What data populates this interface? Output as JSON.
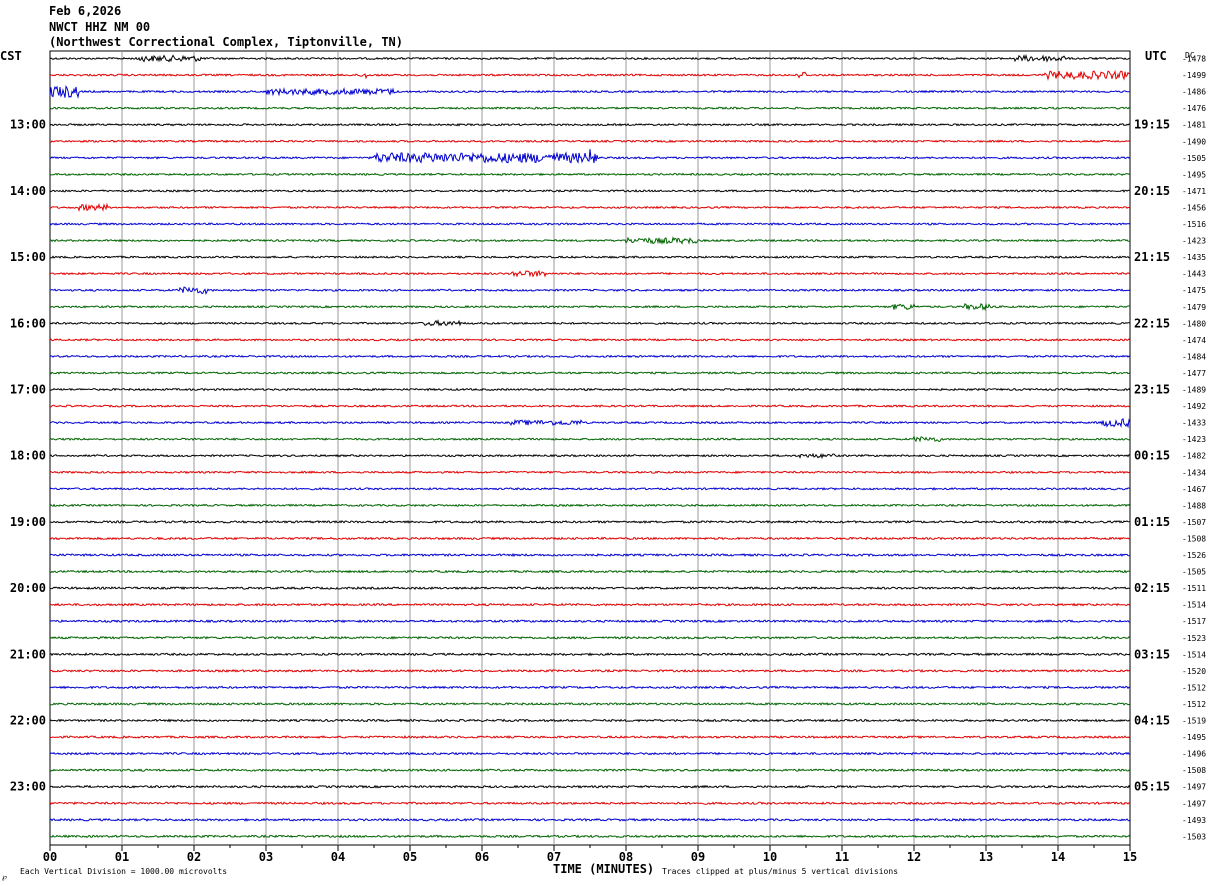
{
  "header": {
    "date": "Feb 6,2026",
    "station": "NWCT HHZ NM 00",
    "location": "(Northwest Correctional Complex, Tiptonville, TN)"
  },
  "labels": {
    "left_tz": "CST",
    "right_tz": "UTC",
    "dc_header": "DC",
    "xlabel": "TIME (MINUTES)",
    "scale_note": "Each Vertical Division = 1000.00 microvolts",
    "clip_note": "Traces clipped at plus/minus 5 vertical divisions",
    "corner_mark": "℘"
  },
  "colors": {
    "trace_cycle": [
      "#000000",
      "#e00000",
      "#0000d0",
      "#006400"
    ],
    "grid": "#9a9a9a",
    "text": "#000000"
  },
  "chart_data": {
    "type": "line",
    "title": "NWCT HHZ NM 00",
    "xlabel": "TIME (MINUTES)",
    "xlim": [
      0,
      15
    ],
    "x_ticks": [
      "00",
      "01",
      "02",
      "03",
      "04",
      "05",
      "06",
      "07",
      "08",
      "09",
      "10",
      "11",
      "12",
      "13",
      "14",
      "15"
    ],
    "rows_per_hour": 4,
    "left_hour_labels": [
      "13:00",
      "14:00",
      "15:00",
      "16:00",
      "17:00",
      "18:00",
      "19:00",
      "20:00",
      "21:00",
      "22:00",
      "23:00"
    ],
    "right_hour_labels": [
      "19:15",
      "20:15",
      "21:15",
      "22:15",
      "23:15",
      "00:15",
      "01:15",
      "02:15",
      "03:15",
      "04:15",
      "05:15"
    ],
    "first_labeled_row": 4,
    "dc_offsets": [
      -1478,
      -1499,
      -1486,
      -1476,
      -1481,
      -1490,
      -1505,
      -1495,
      -1471,
      -1456,
      -1516,
      -1423,
      -1435,
      -1443,
      -1475,
      -1479,
      -1480,
      -1474,
      -1484,
      -1477,
      -1489,
      -1492,
      -1433,
      -1423,
      -1482,
      -1434,
      -1467,
      -1488,
      -1507,
      -1508,
      -1526,
      -1505,
      -1511,
      -1514,
      -1517,
      -1523,
      -1514,
      -1520,
      -1512,
      -1512,
      -1519,
      -1495,
      -1496,
      -1508,
      -1497,
      -1497,
      -1493,
      -1503
    ],
    "events": [
      {
        "row": 0,
        "start_min": 1.2,
        "end_min": 2.1,
        "amp": 3.0
      },
      {
        "row": 0,
        "start_min": 13.4,
        "end_min": 14.1,
        "amp": 3.0
      },
      {
        "row": 1,
        "start_min": 13.8,
        "end_min": 15.0,
        "amp": 4.0
      },
      {
        "row": 1,
        "start_min": 10.4,
        "end_min": 10.5,
        "amp": 4.0
      },
      {
        "row": 1,
        "start_min": 4.3,
        "end_min": 4.4,
        "amp": 3.5
      },
      {
        "row": 2,
        "start_min": 0.0,
        "end_min": 0.4,
        "amp": 6.0
      },
      {
        "row": 2,
        "start_min": 3.0,
        "end_min": 4.8,
        "amp": 3.0
      },
      {
        "row": 6,
        "start_min": 4.5,
        "end_min": 7.5,
        "amp": 5.0
      },
      {
        "row": 6,
        "start_min": 7.5,
        "end_min": 7.6,
        "amp": 9.0
      },
      {
        "row": 9,
        "start_min": 0.4,
        "end_min": 0.8,
        "amp": 3.0
      },
      {
        "row": 11,
        "start_min": 8.0,
        "end_min": 9.0,
        "amp": 3.0
      },
      {
        "row": 13,
        "start_min": 6.4,
        "end_min": 6.9,
        "amp": 3.0
      },
      {
        "row": 14,
        "start_min": 1.8,
        "end_min": 2.2,
        "amp": 3.5
      },
      {
        "row": 15,
        "start_min": 11.7,
        "end_min": 12.0,
        "amp": 3.0
      },
      {
        "row": 15,
        "start_min": 12.7,
        "end_min": 13.1,
        "amp": 3.0
      },
      {
        "row": 16,
        "start_min": 5.2,
        "end_min": 5.7,
        "amp": 2.5
      },
      {
        "row": 22,
        "start_min": 6.4,
        "end_min": 7.4,
        "amp": 2.5
      },
      {
        "row": 22,
        "start_min": 14.6,
        "end_min": 15.0,
        "amp": 4.0
      },
      {
        "row": 23,
        "start_min": 12.0,
        "end_min": 12.4,
        "amp": 2.5
      },
      {
        "row": 24,
        "start_min": 10.4,
        "end_min": 10.9,
        "amp": 2.0
      }
    ]
  }
}
